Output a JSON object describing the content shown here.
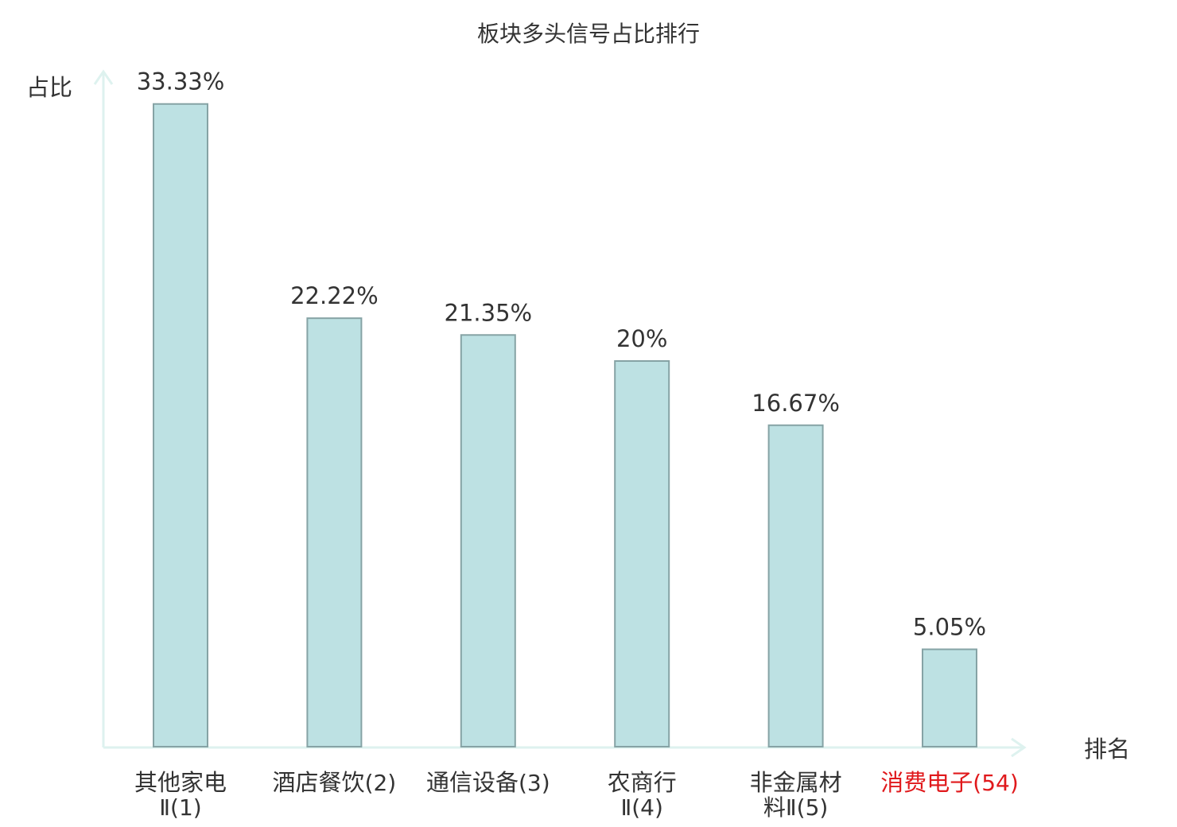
{
  "chart_data": {
    "type": "bar",
    "title": "板块多头信号占比排行",
    "ylabel": "占比",
    "xlabel": "排名",
    "ylim": [
      0,
      35
    ],
    "grid": false,
    "legend": "none",
    "categories": [
      {
        "name": "其他家电",
        "rank": "Ⅱ(1)",
        "highlight": false
      },
      {
        "name": "酒店餐饮",
        "rank": "(2)",
        "highlight": false
      },
      {
        "name": "通信设备",
        "rank": "(3)",
        "highlight": false
      },
      {
        "name": "农商行",
        "rank": "Ⅱ(4)",
        "highlight": false
      },
      {
        "name": "非金属材",
        "rank": "料Ⅱ(5)",
        "highlight": false
      },
      {
        "name": "消费电子",
        "rank": "(54)",
        "highlight": true
      }
    ],
    "values": [
      33.33,
      22.22,
      21.35,
      20,
      16.67,
      5.05
    ],
    "value_labels": [
      "33.33%",
      "22.22%",
      "21.35%",
      "20%",
      "16.67%",
      "5.05%"
    ],
    "colors": {
      "bar_fill": "#bde1e3",
      "bar_stroke": "#86a3a5",
      "axis": "#def2ef",
      "text": "#333333",
      "highlight_text": "#e0191c"
    }
  }
}
